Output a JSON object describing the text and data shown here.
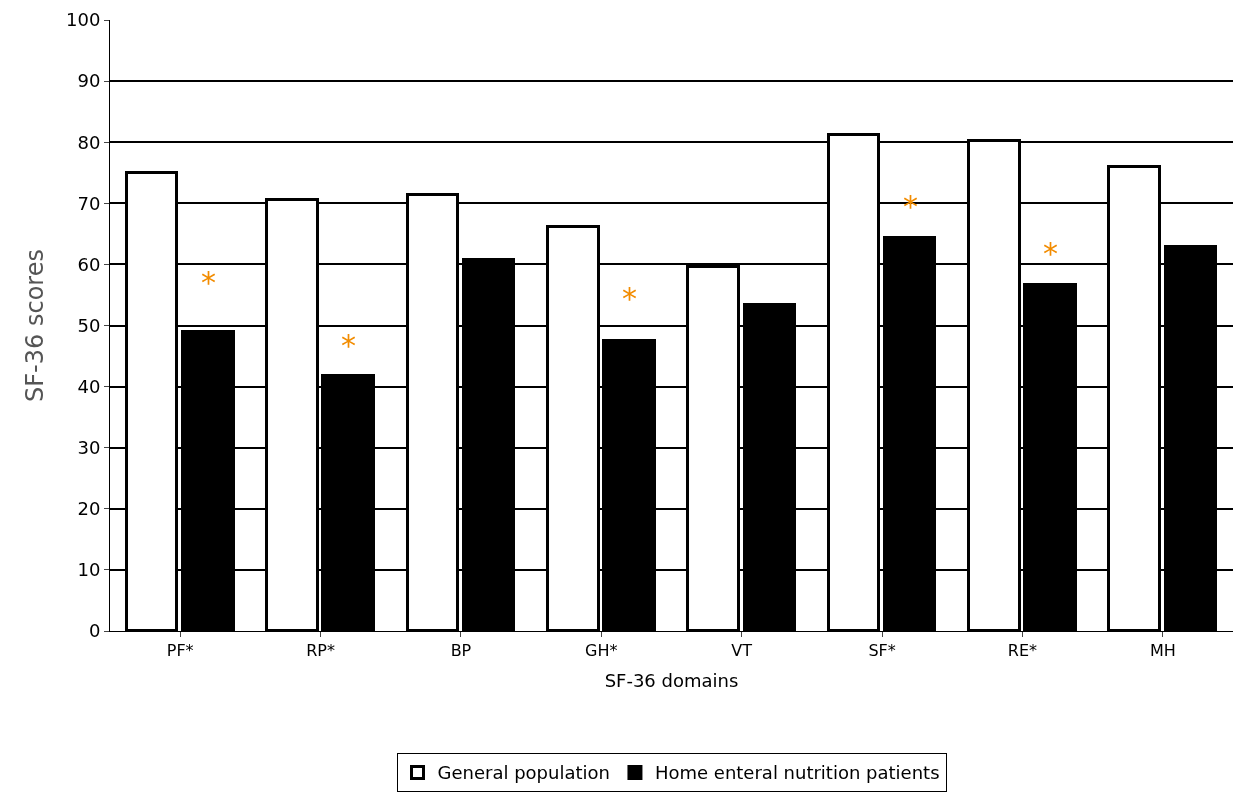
{
  "chart_data": {
    "type": "bar",
    "xlabel": "SF-36 domains",
    "ylabel": "SF-36 scores",
    "categories": [
      "PF*",
      "RP*",
      "BP",
      "GH*",
      "VT",
      "SF*",
      "RE*",
      "MH"
    ],
    "series": [
      {
        "name": "General population",
        "color": "#ffffff",
        "values": [
          75,
          70.5,
          71.3,
          66.2,
          59.5,
          81.1,
          80.2,
          75.9
        ]
      },
      {
        "name": "Home enteral nutrition patients",
        "color": "#000000",
        "values": [
          49,
          41.8,
          60.8,
          47.5,
          53.4,
          64.4,
          56.7,
          62.8
        ]
      }
    ],
    "ylim": [
      0,
      100
    ],
    "yticks": [
      0,
      10,
      20,
      30,
      40,
      50,
      60,
      70,
      80,
      90,
      100
    ],
    "grid": "y",
    "legend": "bottom",
    "annotations": [
      {
        "text": "*",
        "x": "PF*",
        "y": 57
      },
      {
        "text": "*",
        "x": "RP*",
        "y": 46.7
      },
      {
        "text": "*",
        "x": "GH*",
        "y": 54.4
      },
      {
        "text": "*",
        "x": "SF*",
        "y": 69.5
      },
      {
        "text": "*",
        "x": "RE*",
        "y": 61.8
      }
    ]
  }
}
